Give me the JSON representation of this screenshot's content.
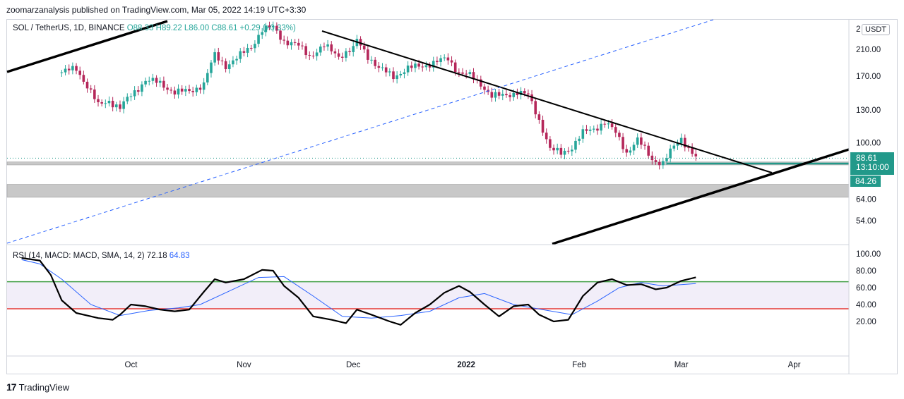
{
  "header": {
    "published": "zoomarzanalysis published on TradingView.com, Mar 05, 2022 14:19 UTC+3:30"
  },
  "legend": {
    "symbol": "SOL / TetherUS, 1D, BINANCE",
    "ohlc": "O88.33  H89.22  L86.00  C88.61  +0.29 (+0.33%)"
  },
  "currency_badge": "USDT",
  "price_axis": {
    "labels": [
      "210.00",
      "170.00",
      "130.00",
      "100.00",
      "64.00",
      "54.00"
    ],
    "top_label": "2"
  },
  "last_price": {
    "value": "88.61",
    "countdown": "13:10:00",
    "level": "84.26"
  },
  "rsi_legend": {
    "label": "RSI (14, MACD: MACD, SMA, 14, 2)",
    "value": "72.18",
    "signal": "64.83"
  },
  "rsi_axis": {
    "labels": [
      "100.00",
      "80.00",
      "60.00",
      "40.00",
      "20.00"
    ]
  },
  "time_axis": {
    "labels": [
      "Oct",
      "Nov",
      "Dec",
      "2022",
      "Feb",
      "Mar",
      "Apr"
    ]
  },
  "footer": {
    "brand": "TradingView"
  },
  "colors": {
    "up": "#26a69a",
    "down": "#b5275a",
    "upper_band": "#43a047",
    "lower_band": "#e53935",
    "signal": "#2962ff",
    "zone": "#c8c8c8"
  },
  "chart_data": [
    {
      "type": "candlestick",
      "title": "SOL / TetherUS, 1D, BINANCE",
      "y_scale": "log",
      "y_ticks": [
        54,
        64,
        100,
        130,
        170,
        210
      ],
      "x_ticks": [
        "Oct",
        "Nov",
        "Dec",
        "2022",
        "Feb",
        "Mar",
        "Apr"
      ],
      "close_path": [
        [
          "2021-09-12",
          175
        ],
        [
          "2021-09-16",
          180
        ],
        [
          "2021-09-20",
          150
        ],
        [
          "2021-09-22",
          134
        ],
        [
          "2021-09-25",
          140
        ],
        [
          "2021-09-28",
          132
        ],
        [
          "2021-10-02",
          150
        ],
        [
          "2021-10-05",
          165
        ],
        [
          "2021-10-09",
          160
        ],
        [
          "2021-10-13",
          150
        ],
        [
          "2021-10-17",
          150
        ],
        [
          "2021-10-21",
          160
        ],
        [
          "2021-10-24",
          200
        ],
        [
          "2021-10-27",
          185
        ],
        [
          "2021-10-30",
          195
        ],
        [
          "2021-11-03",
          215
        ],
        [
          "2021-11-06",
          245
        ],
        [
          "2021-11-09",
          250
        ],
        [
          "2021-11-12",
          225
        ],
        [
          "2021-11-16",
          215
        ],
        [
          "2021-11-19",
          200
        ],
        [
          "2021-11-23",
          215
        ],
        [
          "2021-11-27",
          200
        ],
        [
          "2021-12-01",
          210
        ],
        [
          "2021-12-02",
          225
        ],
        [
          "2021-12-05",
          200
        ],
        [
          "2021-12-08",
          180
        ],
        [
          "2021-12-12",
          170
        ],
        [
          "2021-12-16",
          180
        ],
        [
          "2021-12-20",
          185
        ],
        [
          "2021-12-24",
          190
        ],
        [
          "2021-12-27",
          195
        ],
        [
          "2021-12-30",
          175
        ],
        [
          "2022-01-02",
          170
        ],
        [
          "2022-01-05",
          160
        ],
        [
          "2022-01-08",
          145
        ],
        [
          "2022-01-11",
          145
        ],
        [
          "2022-01-15",
          150
        ],
        [
          "2022-01-18",
          145
        ],
        [
          "2022-01-21",
          120
        ],
        [
          "2022-01-24",
          95
        ],
        [
          "2022-01-27",
          92
        ],
        [
          "2022-01-30",
          97
        ],
        [
          "2022-02-02",
          108
        ],
        [
          "2022-02-05",
          112
        ],
        [
          "2022-02-08",
          118
        ],
        [
          "2022-02-11",
          108
        ],
        [
          "2022-02-14",
          93
        ],
        [
          "2022-02-17",
          102
        ],
        [
          "2022-02-21",
          88
        ],
        [
          "2022-02-24",
          85
        ],
        [
          "2022-02-27",
          97
        ],
        [
          "2022-03-01",
          104
        ],
        [
          "2022-03-03",
          96
        ],
        [
          "2022-03-05",
          88.61
        ]
      ],
      "support_zones": [
        [
          84,
          86
        ],
        [
          65,
          72
        ]
      ],
      "horizontal_level": 84.26,
      "last_close": 88.61
    },
    {
      "type": "line",
      "title": "RSI (14, MACD: MACD, SMA, 14, 2)",
      "ylim": [
        0,
        100
      ],
      "bands": [
        67,
        35
      ],
      "series": [
        {
          "name": "RSI",
          "values": [
            [
              "2021-09-01",
              95
            ],
            [
              "2021-09-06",
              92
            ],
            [
              "2021-09-09",
              75
            ],
            [
              "2021-09-12",
              45
            ],
            [
              "2021-09-16",
              30
            ],
            [
              "2021-09-22",
              24
            ],
            [
              "2021-09-26",
              22
            ],
            [
              "2021-09-28",
              28
            ],
            [
              "2021-10-01",
              40
            ],
            [
              "2021-10-05",
              38
            ],
            [
              "2021-10-09",
              34
            ],
            [
              "2021-10-13",
              32
            ],
            [
              "2021-10-17",
              34
            ],
            [
              "2021-10-21",
              55
            ],
            [
              "2021-10-24",
              70
            ],
            [
              "2021-10-27",
              66
            ],
            [
              "2021-11-01",
              70
            ],
            [
              "2021-11-06",
              81
            ],
            [
              "2021-11-09",
              80
            ],
            [
              "2021-11-12",
              62
            ],
            [
              "2021-11-16",
              48
            ],
            [
              "2021-11-20",
              26
            ],
            [
              "2021-11-25",
              22
            ],
            [
              "2021-11-29",
              18
            ],
            [
              "2021-12-02",
              34
            ],
            [
              "2021-12-06",
              28
            ],
            [
              "2021-12-11",
              20
            ],
            [
              "2021-12-14",
              16
            ],
            [
              "2021-12-18",
              30
            ],
            [
              "2021-12-22",
              40
            ],
            [
              "2021-12-26",
              54
            ],
            [
              "2021-12-30",
              62
            ],
            [
              "2022-01-02",
              55
            ],
            [
              "2022-01-06",
              40
            ],
            [
              "2022-01-10",
              26
            ],
            [
              "2022-01-14",
              38
            ],
            [
              "2022-01-18",
              40
            ],
            [
              "2022-01-21",
              28
            ],
            [
              "2022-01-25",
              20
            ],
            [
              "2022-01-29",
              22
            ],
            [
              "2022-02-02",
              50
            ],
            [
              "2022-02-06",
              66
            ],
            [
              "2022-02-10",
              70
            ],
            [
              "2022-02-14",
              63
            ],
            [
              "2022-02-18",
              64
            ],
            [
              "2022-02-22",
              58
            ],
            [
              "2022-02-25",
              60
            ],
            [
              "2022-03-01",
              68
            ],
            [
              "2022-03-05",
              72.18
            ]
          ]
        },
        {
          "name": "MACD",
          "values": [
            [
              "2021-09-01",
              93
            ],
            [
              "2021-09-06",
              88
            ],
            [
              "2021-09-12",
              70
            ],
            [
              "2021-09-20",
              40
            ],
            [
              "2021-09-28",
              27
            ],
            [
              "2021-10-06",
              33
            ],
            [
              "2021-10-14",
              36
            ],
            [
              "2021-10-20",
              40
            ],
            [
              "2021-10-28",
              56
            ],
            [
              "2021-11-05",
              72
            ],
            [
              "2021-11-12",
              73
            ],
            [
              "2021-11-20",
              50
            ],
            [
              "2021-11-28",
              26
            ],
            [
              "2021-12-06",
              24
            ],
            [
              "2021-12-14",
              27
            ],
            [
              "2021-12-22",
              32
            ],
            [
              "2021-12-30",
              48
            ],
            [
              "2022-01-06",
              53
            ],
            [
              "2022-01-14",
              40
            ],
            [
              "2022-01-22",
              34
            ],
            [
              "2022-01-30",
              28
            ],
            [
              "2022-02-06",
              44
            ],
            [
              "2022-02-12",
              60
            ],
            [
              "2022-02-18",
              66
            ],
            [
              "2022-02-24",
              62
            ],
            [
              "2022-03-05",
              64.83
            ]
          ]
        }
      ]
    }
  ]
}
